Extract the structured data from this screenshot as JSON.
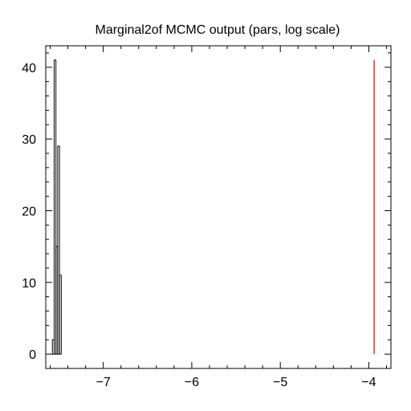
{
  "chart_data": {
    "type": "histogram",
    "title": "Marginal2of MCMC output (pars, log scale)",
    "xlabel": "",
    "ylabel": "",
    "xlim": [
      -7.65,
      -3.75
    ],
    "ylim": [
      -2.0,
      43.0
    ],
    "x_ticks": [
      -7,
      -6,
      -5,
      -4
    ],
    "x_tick_labels": [
      "−7",
      "−6",
      "−5",
      "−4"
    ],
    "y_ticks": [
      0,
      10,
      20,
      30,
      40
    ],
    "y_tick_labels": [
      "0",
      "10",
      "20",
      "30",
      "40"
    ],
    "x_minor_step": 0.2,
    "y_minor_step": 2,
    "histogram": {
      "bin_edges": [
        -7.575,
        -7.555,
        -7.535,
        -7.515,
        -7.495,
        -7.475,
        -7.455
      ],
      "counts": [
        2,
        41,
        15,
        29,
        11,
        0
      ],
      "color": "#000000"
    },
    "reference_line": {
      "x": -3.94,
      "y_from": 0,
      "y_to": 41,
      "color": "#e8302b"
    },
    "grid": false,
    "legend": "none"
  }
}
